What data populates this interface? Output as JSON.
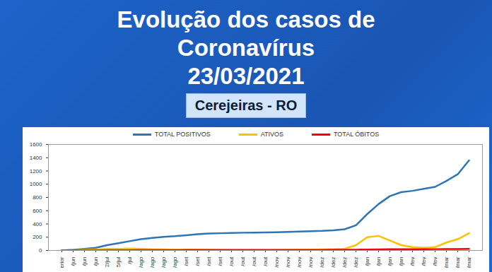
{
  "chart_data": {
    "type": "line",
    "title": "Evolução dos casos de Coronavírus",
    "subtitle": "23/03/2021",
    "annotations": [
      "Cerejeiras - RO"
    ],
    "categories": [
      "erior",
      "/jun",
      "/jun",
      "/jun",
      "2/jul",
      "5/jul",
      "/jul",
      "/ago",
      "/ago",
      "/ago",
      "/ago",
      "/set",
      "/set",
      "/set",
      "/set",
      "/out",
      "/out",
      "/out",
      "/out",
      "/nov",
      "/nov",
      "/nov",
      "/nov",
      "/dez",
      "/dez",
      "/dez",
      "/dez",
      "/jan",
      "/jan",
      "/jan",
      "/jan",
      "/fev",
      "/fev",
      "/fev",
      "/mar",
      "/mar",
      "/mar"
    ],
    "series": [
      {
        "name": "TOTAL POSITIVOS",
        "color": "#2e75b6",
        "values": [
          0,
          10,
          25,
          40,
          80,
          110,
          140,
          170,
          190,
          205,
          215,
          230,
          245,
          255,
          260,
          265,
          268,
          270,
          272,
          275,
          280,
          285,
          290,
          295,
          305,
          320,
          380,
          550,
          700,
          820,
          880,
          900,
          930,
          960,
          1050,
          1150,
          1360
        ]
      },
      {
        "name": "ATIVOS",
        "color": "#ffc000",
        "values": [
          0,
          5,
          10,
          15,
          25,
          25,
          30,
          25,
          20,
          15,
          10,
          10,
          10,
          8,
          5,
          5,
          5,
          5,
          5,
          5,
          8,
          10,
          10,
          15,
          20,
          25,
          80,
          200,
          220,
          150,
          80,
          50,
          40,
          50,
          120,
          170,
          260
        ]
      },
      {
        "name": "TOTAL ÓBITOS",
        "color": "#ff0000",
        "values": [
          0,
          0,
          0,
          1,
          2,
          3,
          4,
          5,
          5,
          6,
          6,
          7,
          7,
          7,
          7,
          7,
          8,
          8,
          8,
          8,
          8,
          8,
          9,
          9,
          10,
          10,
          12,
          14,
          16,
          18,
          18,
          19,
          19,
          20,
          21,
          22,
          24
        ]
      }
    ],
    "ylim": [
      0,
      1600
    ],
    "yticks": [
      0,
      200,
      400,
      600,
      800,
      1000,
      1200,
      1400,
      1600
    ],
    "grid": false,
    "legend": "top"
  }
}
